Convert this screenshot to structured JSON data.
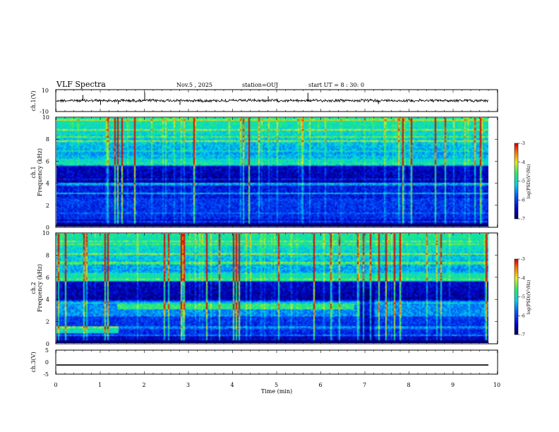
{
  "header": {
    "title": "VLF Spectra",
    "date": "Nov.5 , 2025",
    "station": "station=OUJ",
    "start": "start UT = 8 : 30: 0"
  },
  "chart_data": [
    {
      "type": "line",
      "panel": "ch1-waveform",
      "ylabel": "ch.1(V)",
      "ylim": [
        -10,
        10
      ],
      "yticks": [
        "10",
        "-10"
      ],
      "xlim": [
        0,
        10
      ],
      "description_level": 0
    },
    {
      "type": "heatmap",
      "panel": "ch1-spectrogram",
      "ylabel": "ch.1 Frequency (kHz)",
      "ylim": [
        0,
        10
      ],
      "yticks": [
        "0",
        "2",
        "4",
        "6",
        "8",
        "10"
      ],
      "xlim": [
        0,
        10
      ],
      "colorbar": {
        "label": "log(PSD)(V²/Hz)",
        "ticks": [
          "-3",
          "-4",
          "-5",
          "-6",
          "-7"
        ],
        "range": [
          -7,
          -3
        ]
      }
    },
    {
      "type": "heatmap",
      "panel": "ch2-spectrogram",
      "ylabel": "ch.2 Frequency (kHz)",
      "ylim": [
        0,
        10
      ],
      "yticks": [
        "0",
        "2",
        "4",
        "6",
        "8",
        "10"
      ],
      "xlim": [
        0,
        10
      ],
      "colorbar": {
        "label": "log(PSD)(V²/Hz)",
        "ticks": [
          "-3",
          "-4",
          "-5",
          "-6",
          "-7"
        ],
        "range": [
          -7,
          -3
        ]
      }
    },
    {
      "type": "line",
      "panel": "ch3-waveform",
      "ylabel": "ch.3(V)",
      "ylim": [
        -5,
        5
      ],
      "yticks": [
        "5",
        "0",
        "-5"
      ],
      "xlim": [
        0,
        10
      ],
      "level": -1.2
    }
  ],
  "xaxis": {
    "label": "Time (min)",
    "ticks": [
      "0",
      "1",
      "2",
      "3",
      "4",
      "5",
      "6",
      "7",
      "8",
      "9",
      "10"
    ]
  },
  "colors": {
    "deep": "#000066",
    "blue": "#0a1fb0",
    "cyan": "#20c8e0",
    "green": "#30e070",
    "yellow": "#f0e020",
    "red": "#e02020"
  }
}
